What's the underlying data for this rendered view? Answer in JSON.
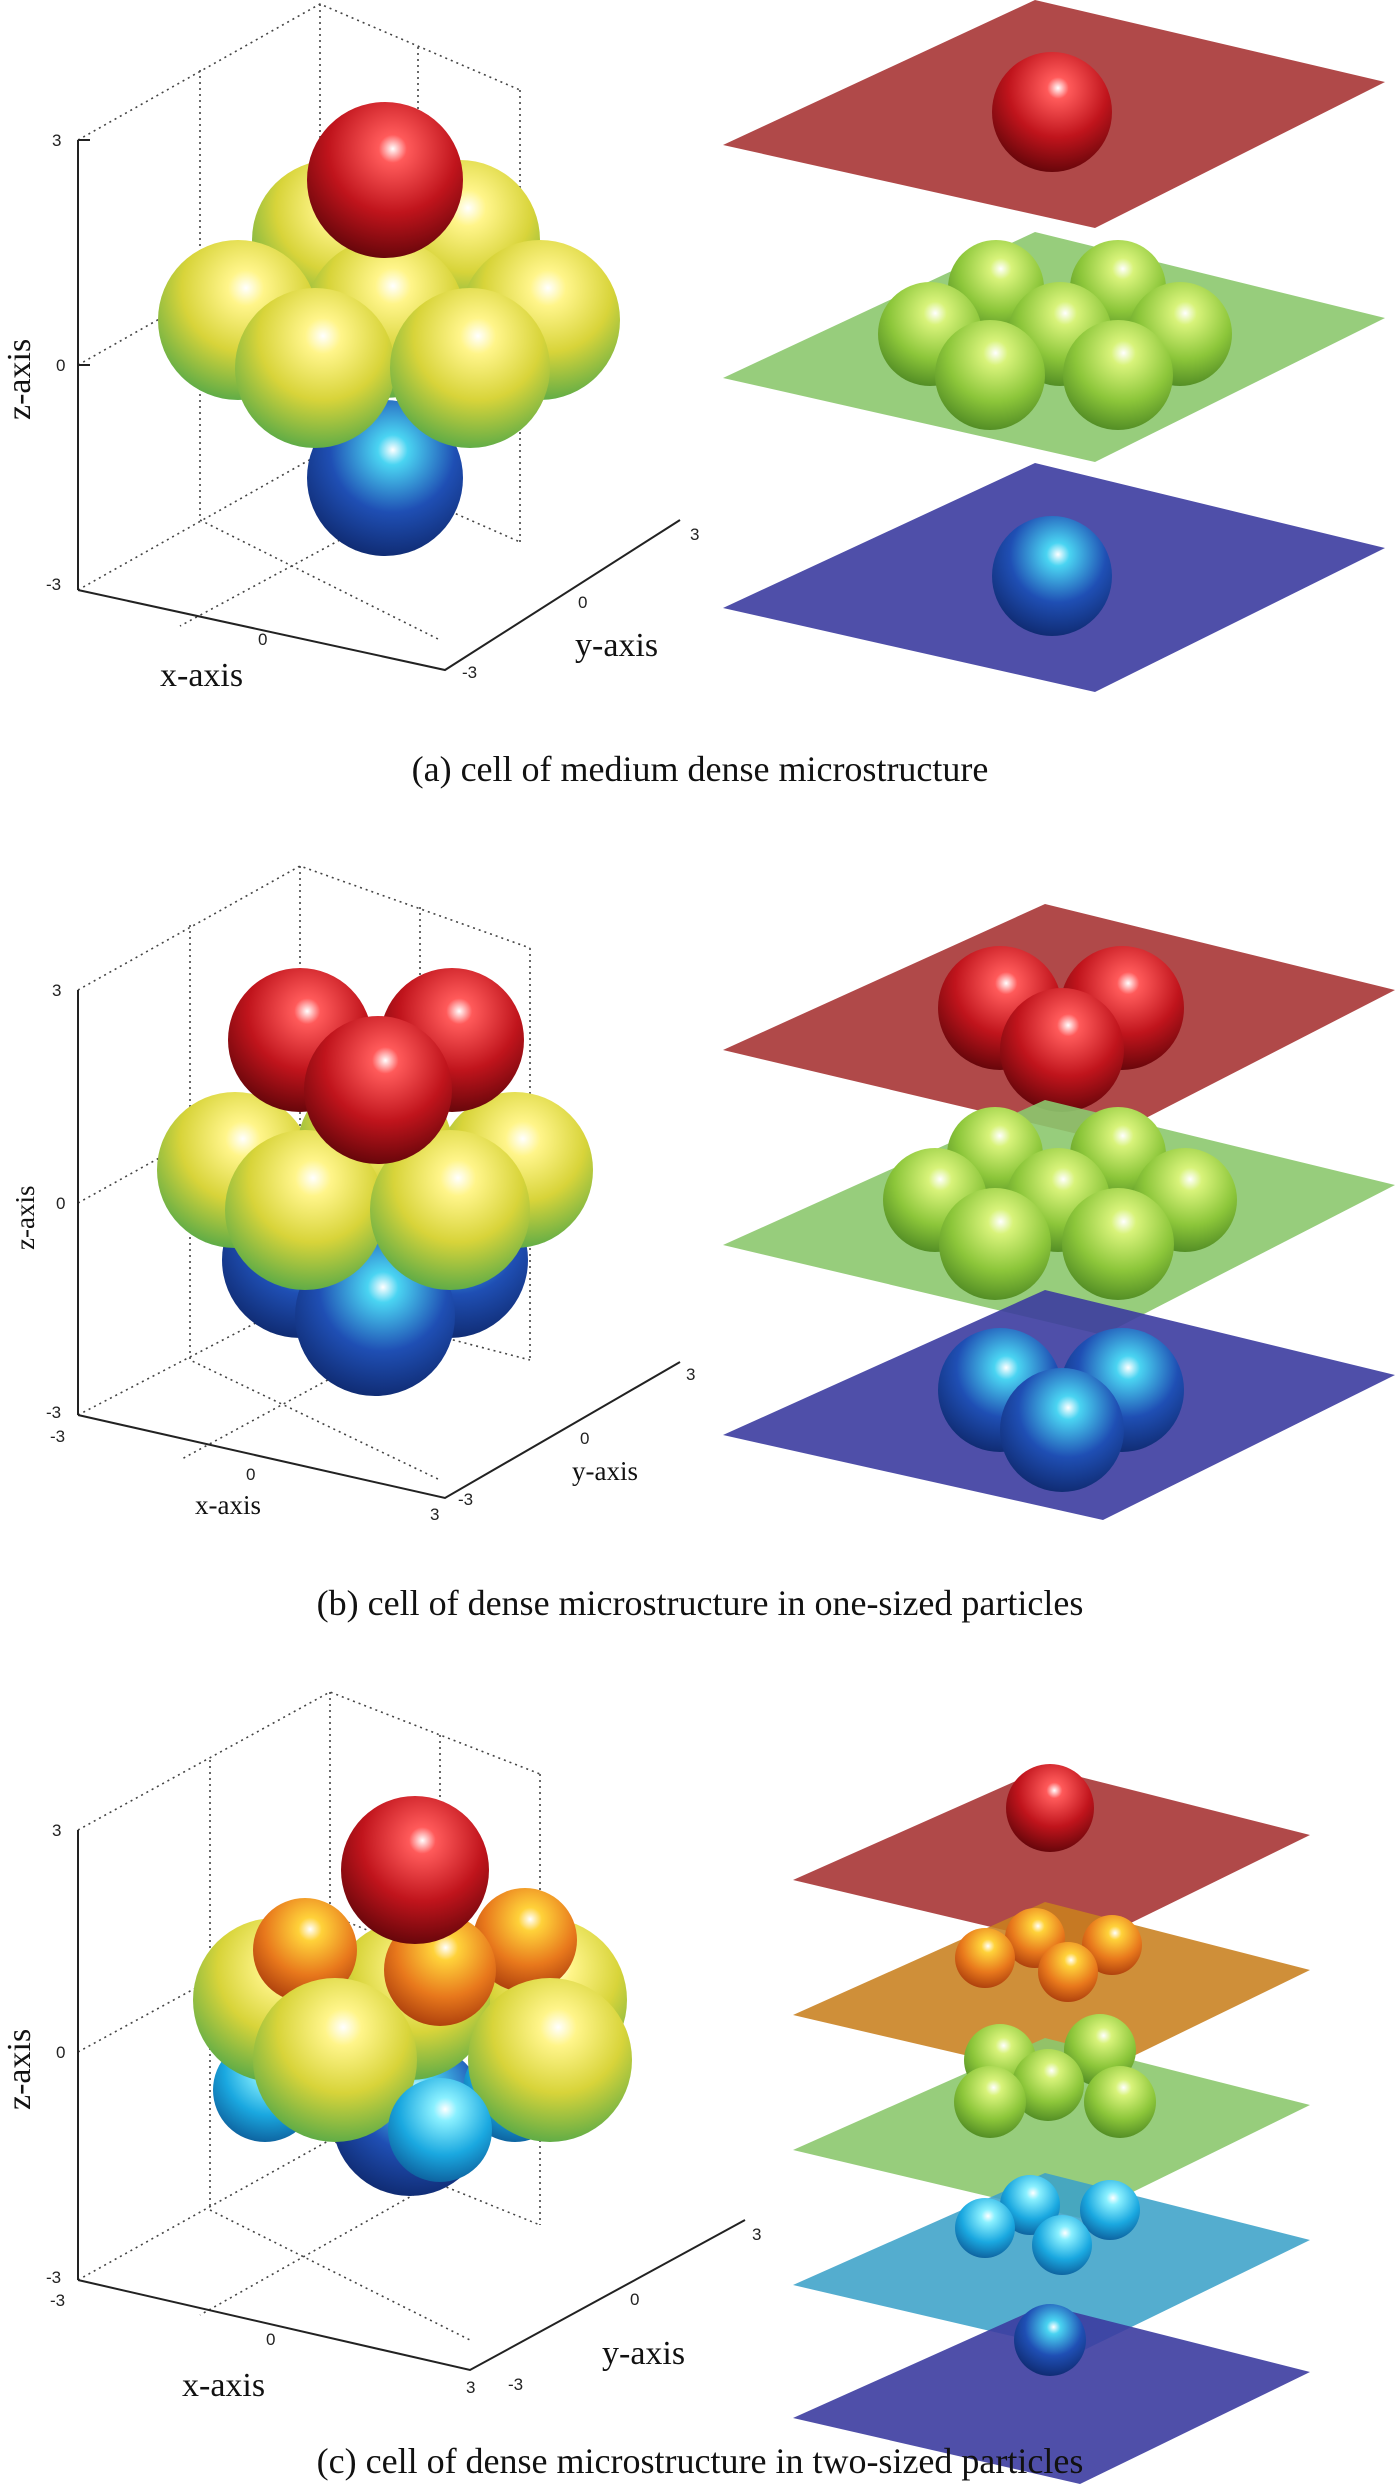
{
  "figure": {
    "panels": [
      {
        "caption": "(a) cell of medium dense microstructure",
        "axes": {
          "xlabel": "x-axis",
          "ylabel": "y-axis",
          "zlabel": "z-axis",
          "x_ticks": [
            "0"
          ],
          "y_ticks": [
            "-3",
            "0",
            "3"
          ],
          "z_ticks": [
            "-3",
            "0",
            "3"
          ]
        }
      },
      {
        "caption": "(b) cell of dense microstructure in one-sized particles",
        "axes": {
          "xlabel": "x-axis",
          "ylabel": "y-axis",
          "zlabel": "z-axis",
          "x_ticks": [
            "-3",
            "0",
            "3"
          ],
          "y_ticks": [
            "-3",
            "0",
            "3"
          ],
          "z_ticks": [
            "-3",
            "0",
            "3"
          ]
        }
      },
      {
        "caption": "(c) cell of dense microstructure in two-sized particles",
        "axes": {
          "xlabel": "x-axis",
          "ylabel": "y-axis",
          "zlabel": "z-axis",
          "x_ticks": [
            "-3",
            "0",
            "3"
          ],
          "y_ticks": [
            "-3",
            "0",
            "3"
          ],
          "z_ticks": [
            "-3",
            "0",
            "3"
          ]
        }
      }
    ],
    "colors": {
      "red_sphere": "#c0141c",
      "yellow_sphere": "#e6d84a",
      "green_sphere": "#9ccc3c",
      "blue_sphere": "#1f4fb4",
      "orange_sphere": "#e8781c",
      "cyan_sphere": "#1aa8e0",
      "plane_red": "#a93a3a",
      "plane_orange": "#c8801e",
      "plane_green": "#8cc86e",
      "plane_cyan": "#3ca2c8",
      "plane_blue": "#3c3ca0"
    }
  }
}
